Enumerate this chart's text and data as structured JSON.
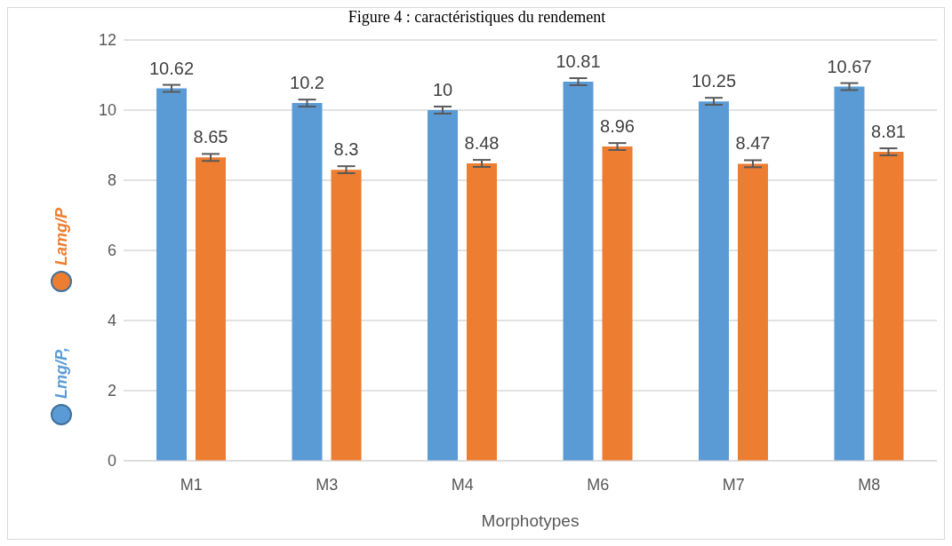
{
  "chart_data": {
    "type": "bar",
    "title": "Figure 4 : caractéristiques du rendement",
    "xlabel": "Morphotypes",
    "categories": [
      "M1",
      "M3",
      "M4",
      "M6",
      "M7",
      "M8"
    ],
    "series": [
      {
        "name": "Lmg/P,",
        "color": "#5b9bd5",
        "values": [
          10.62,
          10.2,
          10,
          10.81,
          10.25,
          10.67
        ],
        "errors": [
          0.1,
          0.1,
          0.1,
          0.1,
          0.1,
          0.1
        ]
      },
      {
        "name": "Lamg/P",
        "color": "#ed7d31",
        "values": [
          8.65,
          8.3,
          8.48,
          8.96,
          8.47,
          8.81
        ],
        "errors": [
          0.1,
          0.1,
          0.1,
          0.1,
          0.1,
          0.1
        ]
      }
    ],
    "ylim": [
      0,
      12
    ],
    "yticks": [
      0,
      2,
      4,
      6,
      8,
      10,
      12
    ],
    "grid": "y",
    "legend": "left",
    "data_labels": true
  }
}
